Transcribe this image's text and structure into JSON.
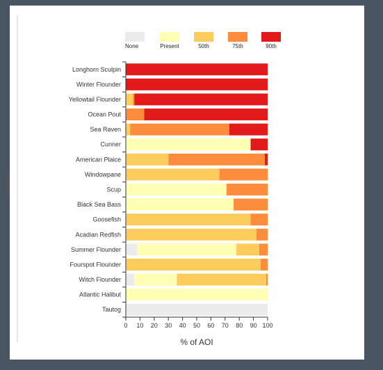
{
  "chart_data": {
    "type": "bar",
    "orientation": "horizontal",
    "stacked": true,
    "xlabel": "% of AOI",
    "xlim": [
      0,
      100
    ],
    "xticks": [
      0,
      10,
      20,
      30,
      40,
      50,
      60,
      70,
      80,
      90,
      100
    ],
    "legend": {
      "placement": "top"
    },
    "categories": [
      "Longhorn Sculpin",
      "Winter Flounder",
      "Yellowtail Flounder",
      "Ocean Pout",
      "Sea Raven",
      "Cunner",
      "American Plaice",
      "Windowpane",
      "Scup",
      "Black Sea Bass",
      "Goosefish",
      "Acadian Redfish",
      "Summer Flounder",
      "Fourspot Flounder",
      "Witch Flounder",
      "Atlantic Halibut",
      "Tautog"
    ],
    "series": [
      {
        "name": "None",
        "color": "#ebebeb",
        "values": [
          0,
          0,
          0,
          0,
          0,
          0,
          0,
          0,
          0,
          0,
          0,
          0,
          8,
          0,
          6,
          0,
          100
        ]
      },
      {
        "name": "Present",
        "color": "#ffffb2",
        "values": [
          0,
          0,
          0,
          0,
          0,
          88,
          0,
          0,
          71,
          76,
          0,
          0,
          70,
          0,
          30,
          100,
          0
        ]
      },
      {
        "name": "50th",
        "color": "#fecc5c",
        "values": [
          0,
          0,
          5,
          0,
          3,
          0,
          30,
          66,
          0,
          0,
          88,
          92,
          16,
          95,
          63,
          0,
          0
        ]
      },
      {
        "name": "75th",
        "color": "#fd8d3c",
        "values": [
          0,
          0,
          1,
          13,
          70,
          0,
          68,
          34,
          29,
          24,
          12,
          8,
          6,
          5,
          1,
          0,
          0
        ]
      },
      {
        "name": "90th",
        "color": "#e31a1c",
        "values": [
          100,
          100,
          94,
          87,
          27,
          12,
          2,
          0,
          0,
          0,
          0,
          0,
          0,
          0,
          0,
          0,
          0
        ]
      }
    ]
  }
}
